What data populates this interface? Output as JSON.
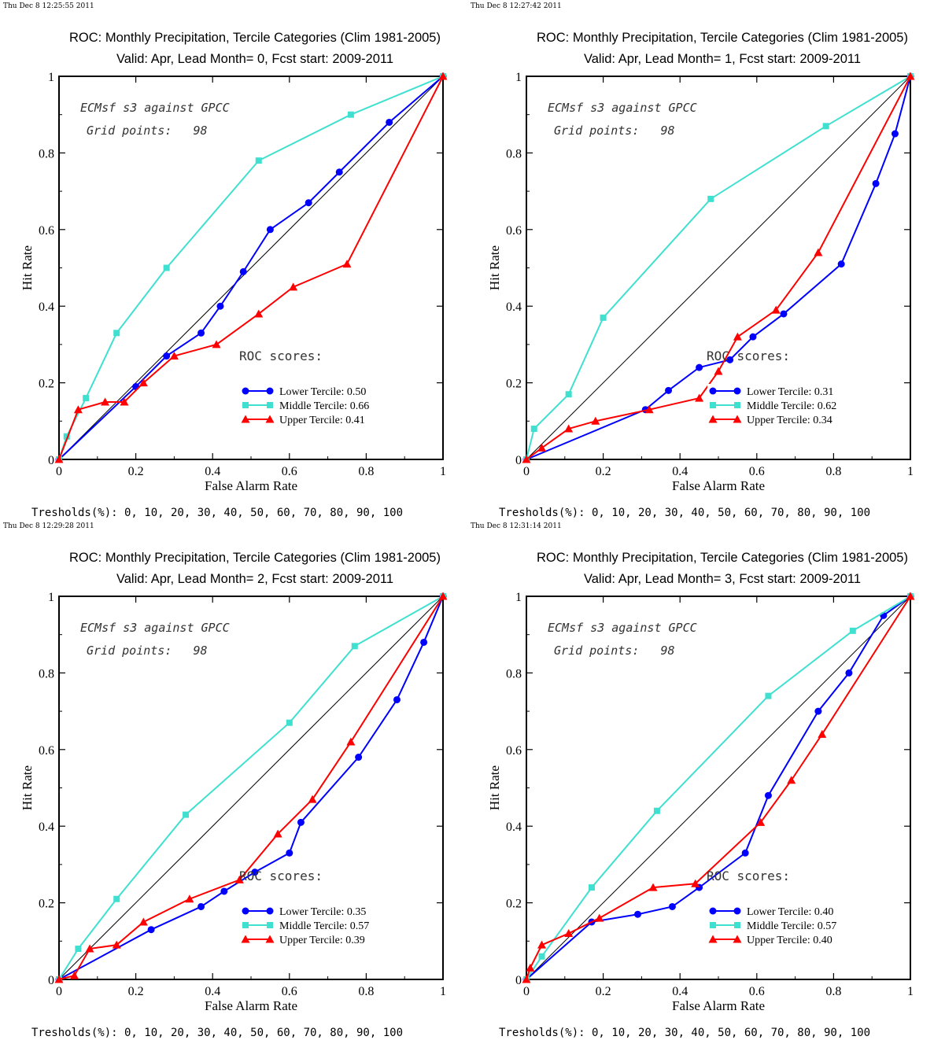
{
  "colors": {
    "lower": "#0000ff",
    "middle": "#40e0d0",
    "upper": "#ff0000",
    "diagonal": "#000000",
    "frame": "#000000"
  },
  "chart_data": [
    {
      "type": "line",
      "timestamp": "Thu Dec  8 12:25:55 2011",
      "title": "ROC: Monthly Precipitation, Tercile Categories (Clim 1981-2005)",
      "subtitle": "Valid: Apr, Lead Month= 0, Fcst start: 2009-2011",
      "xlabel": "False Alarm Rate",
      "ylabel": "Hit Rate",
      "xlim": [
        0,
        1
      ],
      "ylim": [
        0,
        1
      ],
      "x_ticks": [
        "0",
        "0.2",
        "0.4",
        "0.6",
        "0.8",
        "1"
      ],
      "y_ticks": [
        "0",
        "0.2",
        "0.4",
        "0.6",
        "0.8",
        "1"
      ],
      "annotation_1": "ECMsf s3 against GPCC",
      "annotation_2": "Grid points:   98",
      "scores_title": "ROC scores:",
      "thresholds": "Tresholds(%): 0, 10, 20, 30, 40, 50, 60, 70, 80, 90, 100",
      "series": [
        {
          "name": "Lower Tercile: 0.50",
          "marker": "circle",
          "color_key": "lower",
          "x": [
            0,
            0.2,
            0.28,
            0.37,
            0.42,
            0.48,
            0.55,
            0.65,
            0.73,
            0.86,
            1
          ],
          "y": [
            0,
            0.19,
            0.27,
            0.33,
            0.4,
            0.49,
            0.6,
            0.67,
            0.75,
            0.88,
            1
          ]
        },
        {
          "name": "Middle Tercile: 0.66",
          "marker": "square",
          "color_key": "middle",
          "x": [
            0,
            0.02,
            0.07,
            0.15,
            0.28,
            0.52,
            0.76,
            1
          ],
          "y": [
            0,
            0.06,
            0.16,
            0.33,
            0.5,
            0.78,
            0.9,
            1
          ]
        },
        {
          "name": "Upper Tercile: 0.41",
          "marker": "triangle",
          "color_key": "upper",
          "x": [
            0,
            0.05,
            0.12,
            0.17,
            0.22,
            0.3,
            0.41,
            0.52,
            0.61,
            0.75,
            1
          ],
          "y": [
            0,
            0.13,
            0.15,
            0.15,
            0.2,
            0.27,
            0.3,
            0.38,
            0.45,
            0.51,
            1
          ]
        }
      ]
    },
    {
      "type": "line",
      "timestamp": "Thu Dec  8 12:27:42 2011",
      "title": "ROC: Monthly Precipitation, Tercile Categories (Clim 1981-2005)",
      "subtitle": "Valid: Apr, Lead Month= 1, Fcst start: 2009-2011",
      "xlabel": "False Alarm Rate",
      "ylabel": "Hit Rate",
      "xlim": [
        0,
        1
      ],
      "ylim": [
        0,
        1
      ],
      "x_ticks": [
        "0",
        "0.2",
        "0.4",
        "0.6",
        "0.8",
        "1"
      ],
      "y_ticks": [
        "0",
        "0.2",
        "0.4",
        "0.6",
        "0.8",
        "1"
      ],
      "annotation_1": "ECMsf s3 against GPCC",
      "annotation_2": "Grid points:   98",
      "scores_title": "ROC scores:",
      "thresholds": "Tresholds(%): 0, 10, 20, 30, 40, 50, 60, 70, 80, 90, 100",
      "series": [
        {
          "name": "Lower Tercile: 0.31",
          "marker": "circle",
          "color_key": "lower",
          "x": [
            0,
            0.31,
            0.37,
            0.45,
            0.53,
            0.59,
            0.67,
            0.82,
            0.91,
            0.96,
            1
          ],
          "y": [
            0,
            0.13,
            0.18,
            0.24,
            0.26,
            0.32,
            0.38,
            0.51,
            0.72,
            0.85,
            1
          ]
        },
        {
          "name": "Middle Tercile: 0.62",
          "marker": "square",
          "color_key": "middle",
          "x": [
            0,
            0.02,
            0.11,
            0.2,
            0.48,
            0.78,
            1
          ],
          "y": [
            0,
            0.08,
            0.17,
            0.37,
            0.68,
            0.87,
            1
          ]
        },
        {
          "name": "Upper Tercile: 0.34",
          "marker": "triangle",
          "color_key": "upper",
          "x": [
            0,
            0.04,
            0.11,
            0.18,
            0.32,
            0.45,
            0.5,
            0.55,
            0.65,
            0.76,
            1
          ],
          "y": [
            0,
            0.03,
            0.08,
            0.1,
            0.13,
            0.16,
            0.23,
            0.32,
            0.39,
            0.54,
            1
          ]
        }
      ]
    },
    {
      "type": "line",
      "timestamp": "Thu Dec  8 12:29:28 2011",
      "title": "ROC: Monthly Precipitation, Tercile Categories (Clim 1981-2005)",
      "subtitle": "Valid: Apr, Lead Month= 2, Fcst start: 2009-2011",
      "xlabel": "False Alarm Rate",
      "ylabel": "Hit Rate",
      "xlim": [
        0,
        1
      ],
      "ylim": [
        0,
        1
      ],
      "x_ticks": [
        "0",
        "0.2",
        "0.4",
        "0.6",
        "0.8",
        "1"
      ],
      "y_ticks": [
        "0",
        "0.2",
        "0.4",
        "0.6",
        "0.8",
        "1"
      ],
      "annotation_1": "ECMsf s3 against GPCC",
      "annotation_2": "Grid points:   98",
      "scores_title": "ROC scores:",
      "thresholds": "Tresholds(%): 0, 10, 20, 30, 40, 50, 60, 70, 80, 90, 100",
      "series": [
        {
          "name": "Lower Tercile: 0.35",
          "marker": "circle",
          "color_key": "lower",
          "x": [
            0,
            0.24,
            0.37,
            0.43,
            0.51,
            0.6,
            0.63,
            0.78,
            0.88,
            0.95,
            1
          ],
          "y": [
            0,
            0.13,
            0.19,
            0.23,
            0.28,
            0.33,
            0.41,
            0.58,
            0.73,
            0.88,
            1
          ]
        },
        {
          "name": "Middle Tercile: 0.57",
          "marker": "square",
          "color_key": "middle",
          "x": [
            0,
            0.05,
            0.15,
            0.33,
            0.6,
            0.77,
            1
          ],
          "y": [
            0,
            0.08,
            0.21,
            0.43,
            0.67,
            0.87,
            1
          ]
        },
        {
          "name": "Upper Tercile: 0.39",
          "marker": "triangle",
          "color_key": "upper",
          "x": [
            0,
            0.04,
            0.08,
            0.15,
            0.22,
            0.34,
            0.47,
            0.57,
            0.66,
            0.76,
            1
          ],
          "y": [
            0,
            0.01,
            0.08,
            0.09,
            0.15,
            0.21,
            0.26,
            0.38,
            0.47,
            0.62,
            1
          ]
        }
      ]
    },
    {
      "type": "line",
      "timestamp": "Thu Dec  8 12:31:14 2011",
      "title": "ROC: Monthly Precipitation, Tercile Categories (Clim 1981-2005)",
      "subtitle": "Valid: Apr, Lead Month= 3, Fcst start: 2009-2011",
      "xlabel": "False Alarm Rate",
      "ylabel": "Hit Rate",
      "xlim": [
        0,
        1
      ],
      "ylim": [
        0,
        1
      ],
      "x_ticks": [
        "0",
        "0.2",
        "0.4",
        "0.6",
        "0.8",
        "1"
      ],
      "y_ticks": [
        "0",
        "0.2",
        "0.4",
        "0.6",
        "0.8",
        "1"
      ],
      "annotation_1": "ECMsf s3 against GPCC",
      "annotation_2": "Grid points:   98",
      "scores_title": "ROC scores:",
      "thresholds": "Tresholds(%): 0, 10, 20, 30, 40, 50, 60, 70, 80, 90, 100",
      "series": [
        {
          "name": "Lower Tercile: 0.40",
          "marker": "circle",
          "color_key": "lower",
          "x": [
            0,
            0.17,
            0.29,
            0.38,
            0.45,
            0.57,
            0.63,
            0.76,
            0.84,
            0.93,
            1
          ],
          "y": [
            0,
            0.15,
            0.17,
            0.19,
            0.24,
            0.33,
            0.48,
            0.7,
            0.8,
            0.95,
            1
          ]
        },
        {
          "name": "Middle Tercile: 0.57",
          "marker": "square",
          "color_key": "middle",
          "x": [
            0,
            0.04,
            0.17,
            0.34,
            0.63,
            0.85,
            1
          ],
          "y": [
            0,
            0.06,
            0.24,
            0.44,
            0.74,
            0.91,
            1
          ]
        },
        {
          "name": "Upper Tercile: 0.40",
          "marker": "triangle",
          "color_key": "upper",
          "x": [
            0,
            0.01,
            0.04,
            0.11,
            0.19,
            0.33,
            0.44,
            0.61,
            0.69,
            0.77,
            1
          ],
          "y": [
            0,
            0.03,
            0.09,
            0.12,
            0.16,
            0.24,
            0.25,
            0.41,
            0.52,
            0.64,
            1
          ]
        }
      ]
    }
  ]
}
